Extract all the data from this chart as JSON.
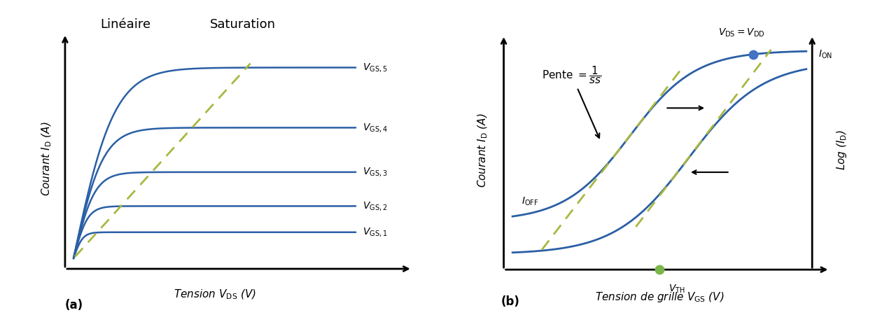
{
  "fig_width": 12.7,
  "fig_height": 4.5,
  "curve_color": "#2a5fa5",
  "dashed_color": "#a8b840",
  "panel_a": {
    "xlabel": "Tension $V_{\\mathrm{DS}}$ (V)",
    "ylabel": "Courant $I_{\\mathrm{D}}$ (A)",
    "label_linear": "Linéaire",
    "label_sat": "Saturation",
    "vgs_labels": [
      "$V_{\\mathrm{GS,1}}$",
      "$V_{\\mathrm{GS,2}}$",
      "$V_{\\mathrm{GS,3}}$",
      "$V_{\\mathrm{GS,4}}$",
      "$V_{\\mathrm{GS,5}}$"
    ],
    "sat_currents": [
      0.1,
      0.2,
      0.33,
      0.5,
      0.73
    ],
    "sat_voltages": [
      0.13,
      0.2,
      0.3,
      0.42,
      0.58
    ],
    "panel_label": "(a)"
  },
  "panel_b": {
    "xlabel": "Tension de grille $V_{\\mathrm{GS}}$ (V)",
    "ylabel_left": "Courant $I_{\\mathrm{D}}$ (A)",
    "ylabel_right": "Log ($I_{\\mathrm{D}}$)",
    "label_pente": "Pente $= \\dfrac{1}{ss}$",
    "label_vth": "$V_{\\mathrm{TH}}$",
    "label_vds": "$V_{\\mathrm{DS}}=V_{\\mathrm{DD}}$",
    "label_ion": "$I_{\\mathrm{ON}}$",
    "label_ioff": "$I_{\\mathrm{OFF}}$",
    "panel_label": "(b)"
  }
}
